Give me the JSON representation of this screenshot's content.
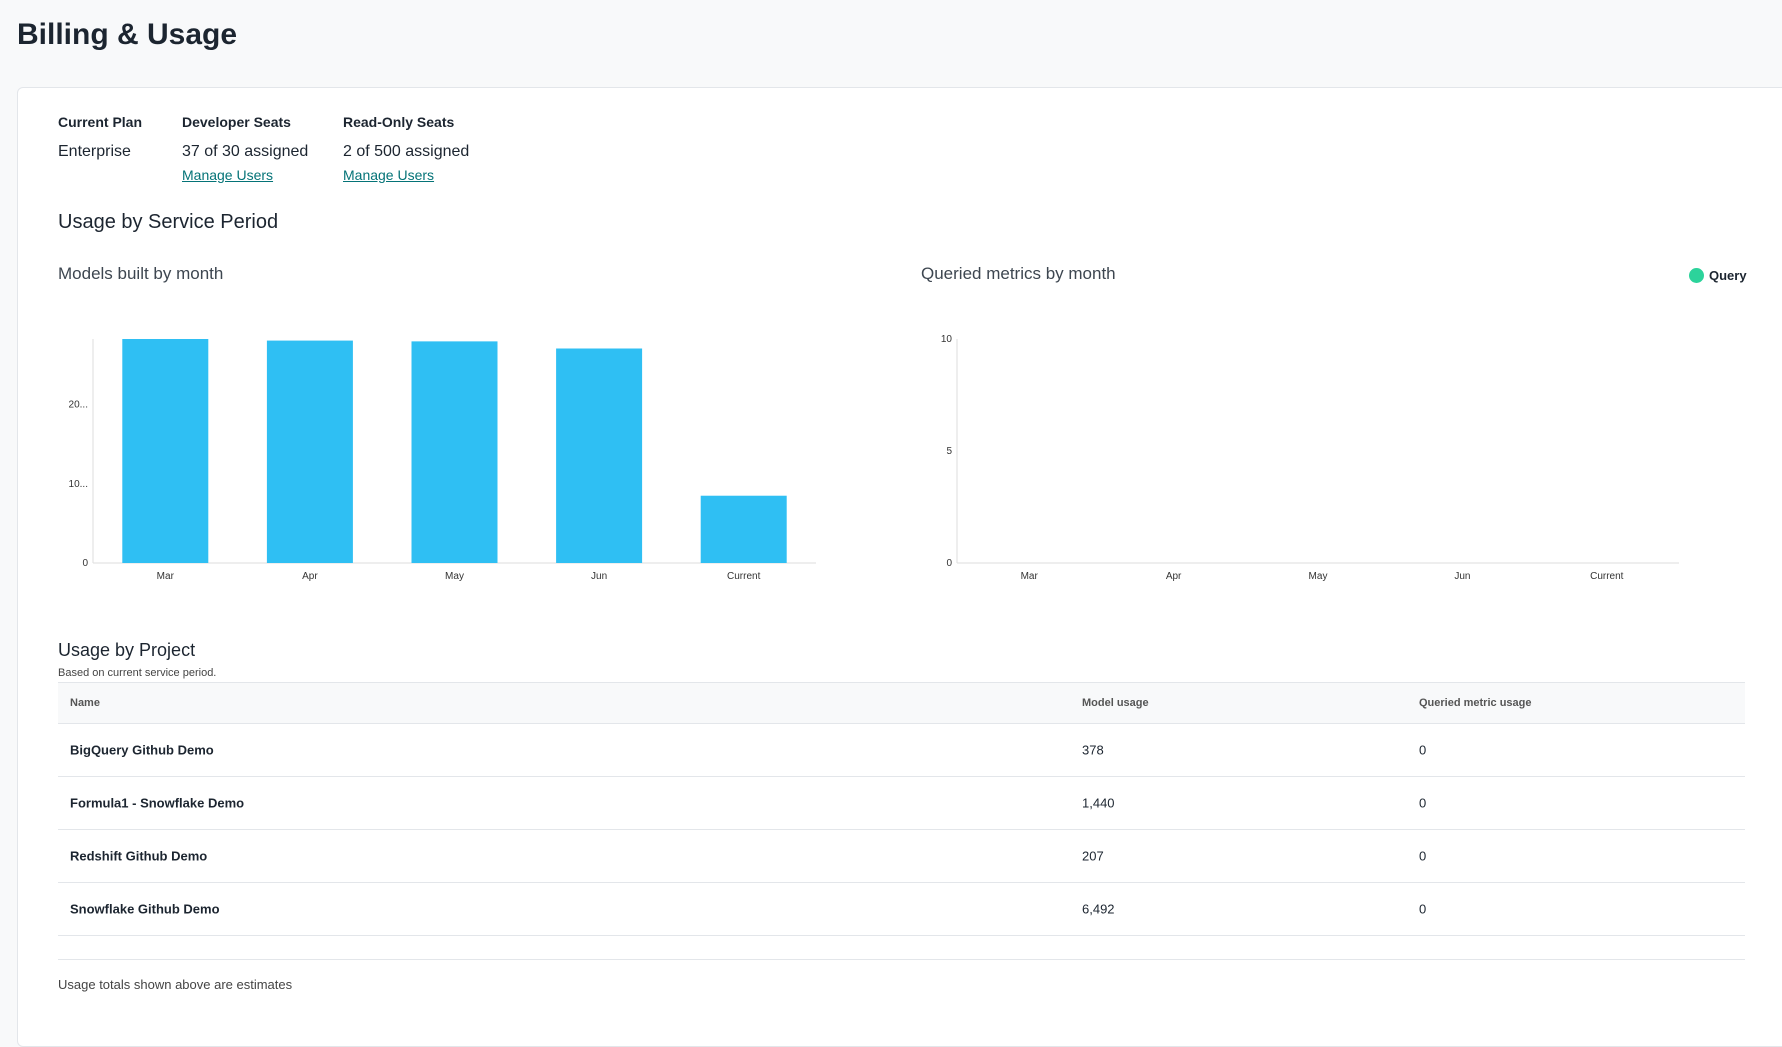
{
  "page_title": "Billing & Usage",
  "plan": {
    "current_plan_label": "Current Plan",
    "current_plan_value": "Enterprise",
    "developer_seats_label": "Developer Seats",
    "developer_seats_value": "37 of 30 assigned",
    "developer_manage": "Manage Users",
    "readonly_seats_label": "Read-Only Seats",
    "readonly_seats_value": "2 of 500 assigned",
    "readonly_manage": "Manage Users"
  },
  "service_period_heading": "Usage by Service Period",
  "chart_data": [
    {
      "type": "bar",
      "title": "Models built by month",
      "categories": [
        "Mar",
        "Apr",
        "May",
        "Jun",
        "Current"
      ],
      "values": [
        28300,
        28100,
        28000,
        27100,
        8500
      ],
      "ylim": [
        0,
        28300
      ],
      "yticks": [
        0,
        10000,
        20000
      ],
      "ytick_labels": [
        "0",
        "10...",
        "20..."
      ],
      "color": "#2fbff3",
      "grid": false
    },
    {
      "type": "bar",
      "title": "Queried metrics by month",
      "categories": [
        "Mar",
        "Apr",
        "May",
        "Jun",
        "Current"
      ],
      "series": [
        {
          "name": "Query",
          "values": [
            0,
            0,
            0,
            0,
            0
          ]
        }
      ],
      "ylim": [
        0,
        10
      ],
      "yticks": [
        0,
        5,
        10
      ],
      "ytick_labels": [
        "0",
        "5",
        "10"
      ],
      "legend": "top-right",
      "color": "#2cd39b",
      "grid": false
    }
  ],
  "project": {
    "heading": "Usage by Project",
    "subtitle": "Based on current service period.",
    "columns": [
      "Name",
      "Model usage",
      "Queried metric usage"
    ],
    "rows": [
      [
        "BigQuery Github Demo",
        "378",
        "0"
      ],
      [
        "Formula1 - Snowflake Demo",
        "1,440",
        "0"
      ],
      [
        "Redshift Github Demo",
        "207",
        "0"
      ],
      [
        "Snowflake Github Demo",
        "6,492",
        "0"
      ]
    ],
    "footer": "Usage totals shown above are estimates"
  }
}
